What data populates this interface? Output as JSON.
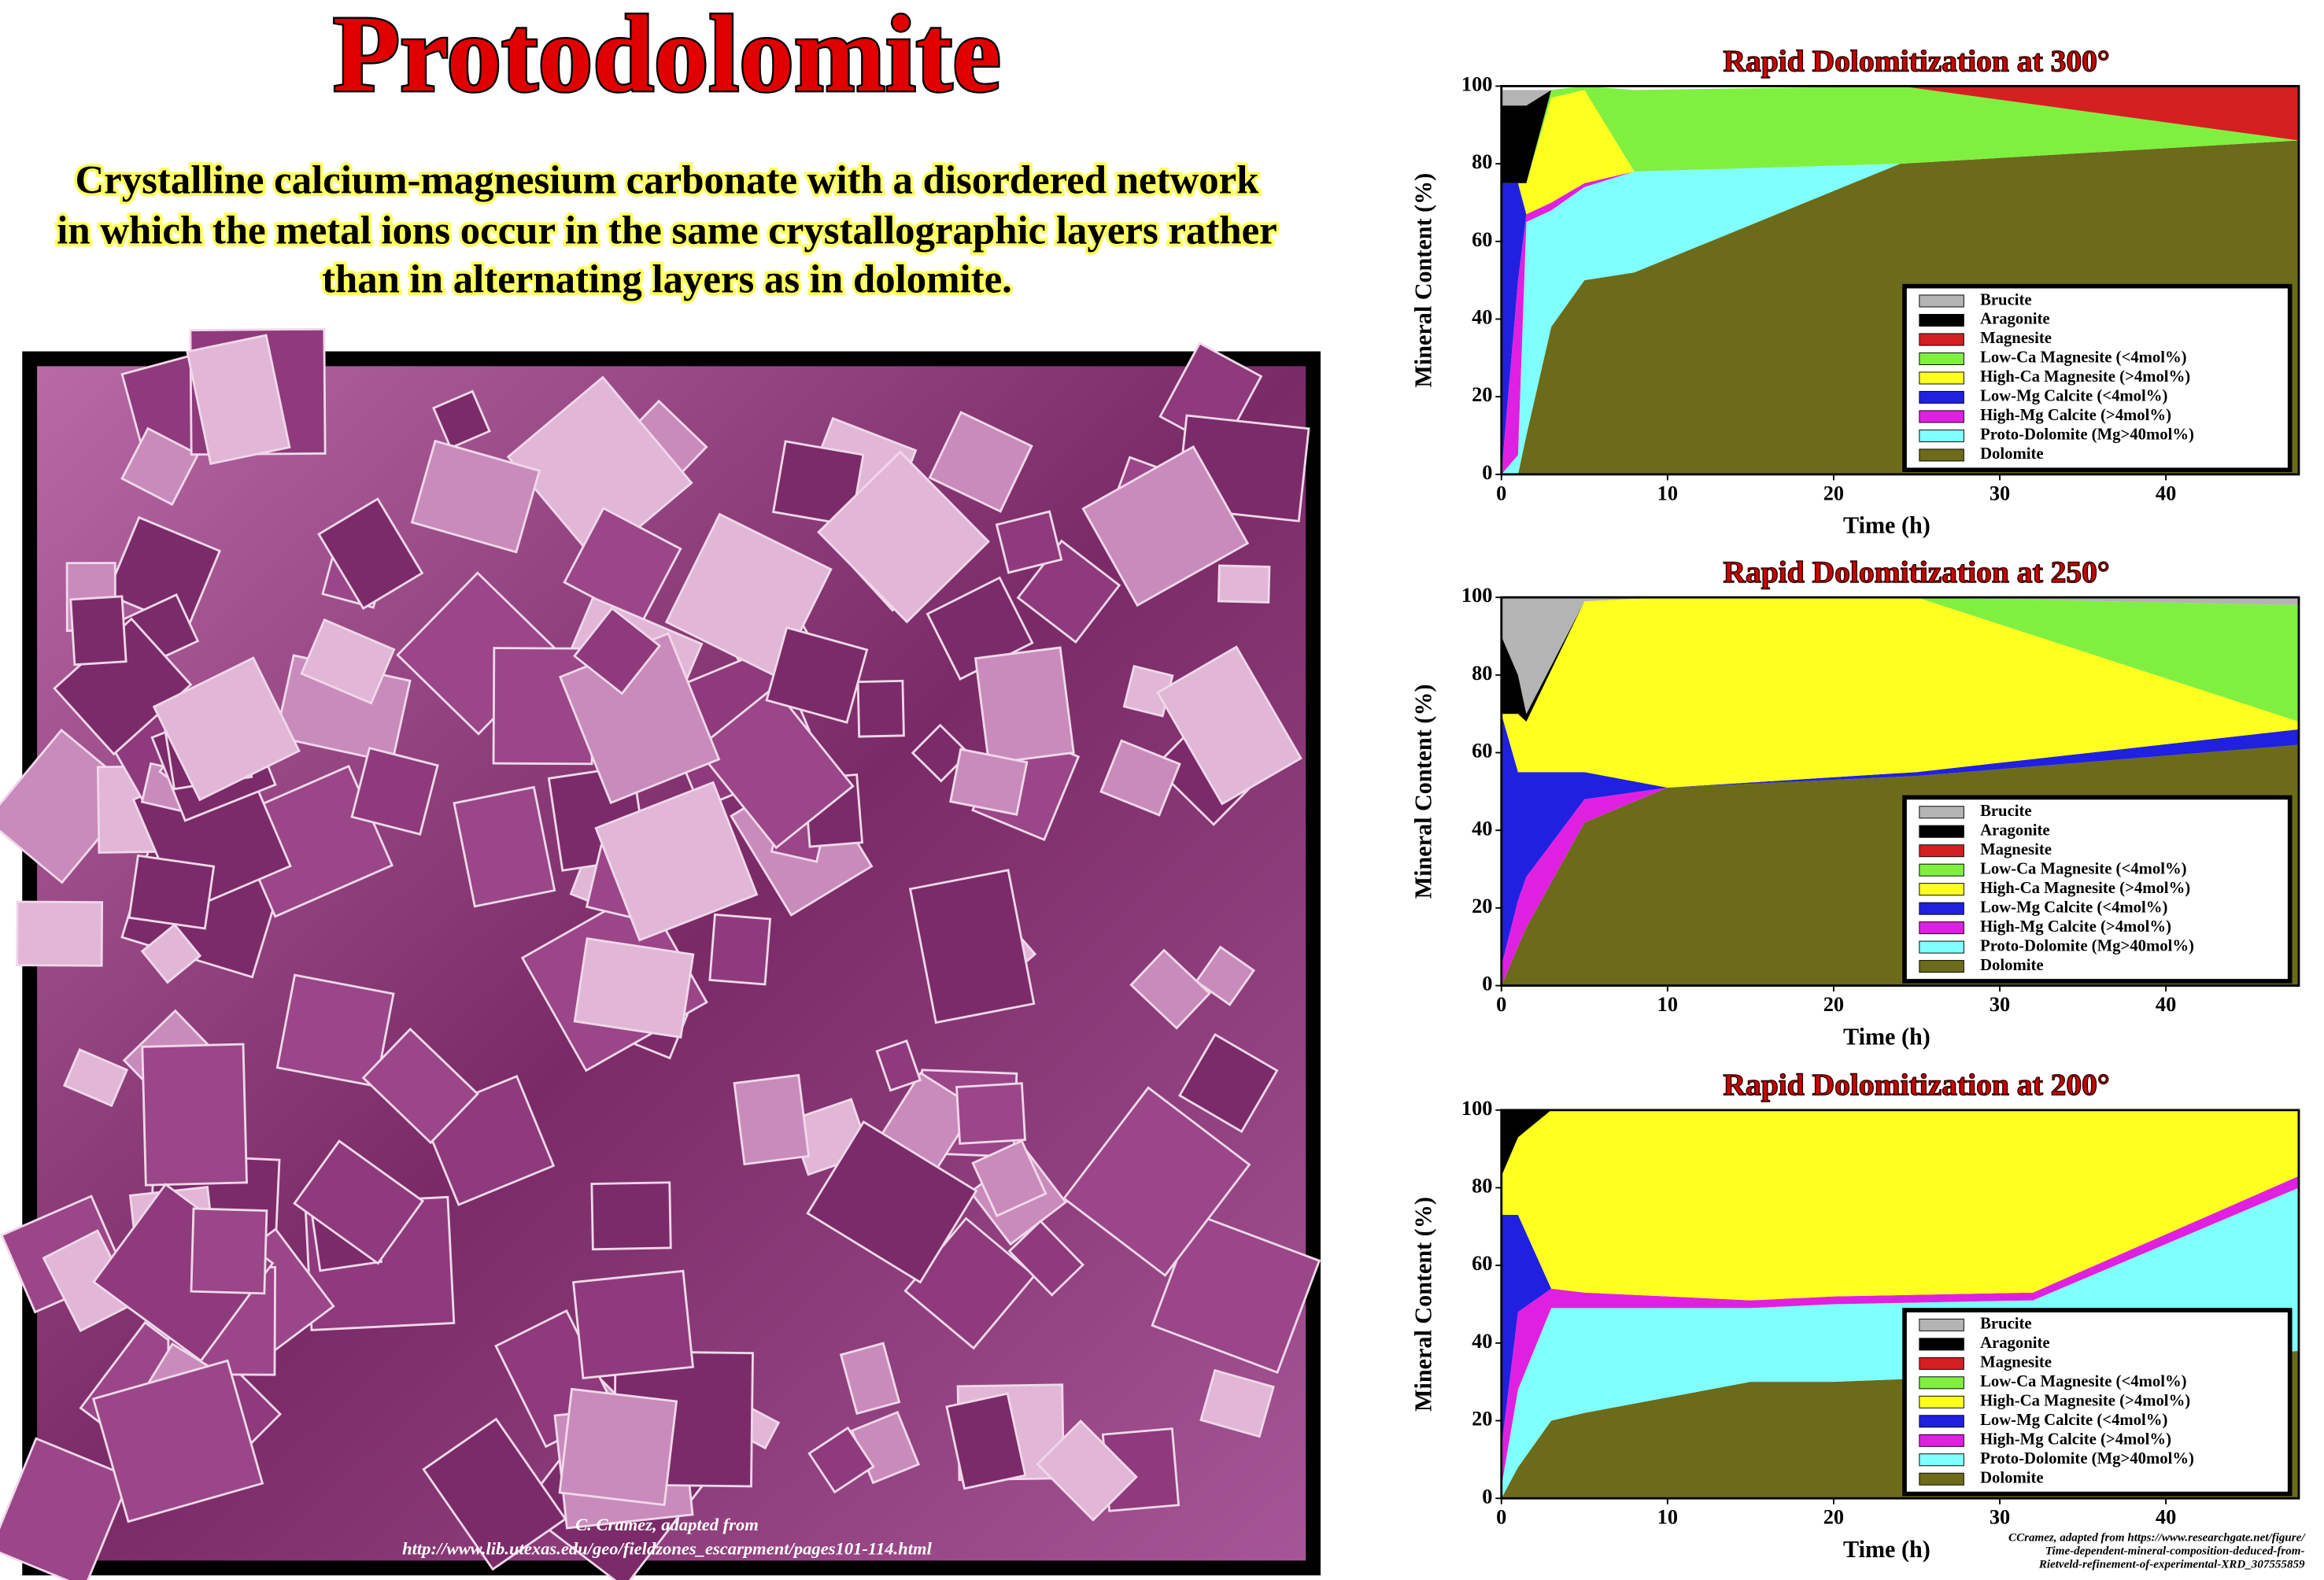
{
  "header": {
    "title": "Protodolomite",
    "subtitle": [
      "Crystalline calcium-magnesium carbonate with a disordered network",
      "in which the metal ions occur in the same crystallographic layers rather",
      "than in alternating layers as in dolomite."
    ]
  },
  "photo_credit": [
    "C. Cramez, adapted from",
    "http://www.lib.utexas.edu/geo/fieldzones_escarpment/pages101-114.html"
  ],
  "chart_credit": [
    "CCramez, adapted from https://www.researchgate.net/figure/",
    "Time-dependent-mineral-composition-deduced-from-",
    "Rietveld-refinement-of-experimental-XRD_307555859"
  ],
  "chart_data": [
    {
      "type": "area",
      "stacked": true,
      "title": "Rapid Dolomitization at 300°",
      "xlabel": "Time (h)",
      "ylabel": "Mineral Content (%)",
      "xlim": [
        0,
        48
      ],
      "ylim": [
        0,
        100
      ],
      "xticks": [
        0,
        10,
        20,
        30,
        40
      ],
      "yticks": [
        0,
        20,
        40,
        60,
        80,
        100
      ],
      "x": [
        0,
        1,
        1.5,
        3,
        5,
        8,
        24,
        48
      ],
      "series": [
        {
          "name": "Brucite",
          "color": "#b4b4b4",
          "values": [
            4,
            4,
            4,
            0,
            0,
            0,
            0,
            0
          ]
        },
        {
          "name": "Aragonite",
          "color": "#000000",
          "values": [
            20,
            20,
            20,
            0,
            0,
            0,
            0,
            0
          ]
        },
        {
          "name": "Magnesite",
          "color": "#d42020",
          "values": [
            0,
            0,
            0,
            0,
            0,
            0,
            0,
            14
          ]
        },
        {
          "name": "Low-Ca Magnesite  (<4mol%)",
          "color": "#80f040",
          "values": [
            0,
            0,
            0,
            2,
            1,
            21,
            20,
            0
          ]
        },
        {
          "name": "High-Ca Magnesite  (>4mol%)",
          "color": "#ffff20",
          "values": [
            0,
            0,
            8,
            27,
            24,
            0,
            0,
            0
          ]
        },
        {
          "name": "Low-Mg Calcite  (<4mol%)",
          "color": "#2020e0",
          "values": [
            75,
            25,
            0,
            0,
            0,
            0,
            0,
            0
          ]
        },
        {
          "name": "High-Mg Calcite  (>4mol%)",
          "color": "#e020e0",
          "values": [
            0,
            45,
            2,
            2,
            1,
            0,
            0,
            0
          ]
        },
        {
          "name": "Proto-Dolomite (Mg>40mol%)",
          "color": "#80ffff",
          "values": [
            0,
            5,
            55,
            30,
            24,
            26,
            0,
            0
          ]
        },
        {
          "name": "Dolomite",
          "color": "#6b6b1a",
          "values": [
            0,
            0,
            10,
            38,
            50,
            52,
            80,
            86
          ]
        }
      ]
    },
    {
      "type": "area",
      "stacked": true,
      "title": "Rapid Dolomitization at 250°",
      "xlabel": "Time (h)",
      "ylabel": "Mineral Content (%)",
      "xlim": [
        0,
        48
      ],
      "ylim": [
        0,
        100
      ],
      "xticks": [
        0,
        10,
        20,
        30,
        40
      ],
      "yticks": [
        0,
        20,
        40,
        60,
        80,
        100
      ],
      "x": [
        0,
        1,
        1.5,
        5,
        10,
        25,
        48
      ],
      "series": [
        {
          "name": "Brucite",
          "color": "#b4b4b4",
          "values": [
            10,
            20,
            30,
            1,
            0,
            0,
            2
          ]
        },
        {
          "name": "Aragonite",
          "color": "#000000",
          "values": [
            20,
            10,
            2,
            0,
            0,
            0,
            0
          ]
        },
        {
          "name": "Magnesite",
          "color": "#d42020",
          "values": [
            0,
            0,
            0,
            0,
            0,
            0,
            0
          ]
        },
        {
          "name": "Low-Ca Magnesite  (<4mol%)",
          "color": "#80f040",
          "values": [
            0,
            0,
            0,
            0,
            0,
            0,
            30
          ]
        },
        {
          "name": "High-Ca Magnesite  (>4mol%)",
          "color": "#ffff20",
          "values": [
            0,
            15,
            13,
            44,
            49,
            45,
            2
          ]
        },
        {
          "name": "Low-Mg Calcite  (<4mol%)",
          "color": "#2020e0",
          "values": [
            65,
            33,
            27,
            7,
            0,
            1,
            4
          ]
        },
        {
          "name": "High-Mg Calcite  (>4mol%)",
          "color": "#e020e0",
          "values": [
            5,
            12,
            13,
            6,
            0,
            0,
            0
          ]
        },
        {
          "name": "Proto-Dolomite (Mg>40mol%)",
          "color": "#80ffff",
          "values": [
            0,
            0,
            0,
            0,
            0,
            0,
            0
          ]
        },
        {
          "name": "Dolomite",
          "color": "#6b6b1a",
          "values": [
            0,
            10,
            15,
            42,
            51,
            54,
            62
          ]
        }
      ]
    },
    {
      "type": "area",
      "stacked": true,
      "title": "Rapid Dolomitization at 200°",
      "xlabel": "Time (h)",
      "ylabel": "Mineral Content (%)",
      "xlim": [
        0,
        48
      ],
      "ylim": [
        0,
        100
      ],
      "xticks": [
        0,
        10,
        20,
        30,
        40
      ],
      "yticks": [
        0,
        20,
        40,
        60,
        80,
        100
      ],
      "x": [
        0,
        1,
        3,
        5,
        15,
        20,
        32,
        48
      ],
      "series": [
        {
          "name": "Brucite",
          "color": "#b4b4b4",
          "values": [
            0,
            0,
            0,
            0,
            0,
            0,
            0,
            0
          ]
        },
        {
          "name": "Aragonite",
          "color": "#000000",
          "values": [
            17,
            7,
            0,
            0,
            0,
            0,
            0,
            0
          ]
        },
        {
          "name": "Magnesite",
          "color": "#d42020",
          "values": [
            0,
            0,
            0,
            0,
            0,
            0,
            0,
            0
          ]
        },
        {
          "name": "Low-Ca Magnesite  (<4mol%)",
          "color": "#80f040",
          "values": [
            0,
            0,
            0,
            0,
            0,
            0,
            0,
            0
          ]
        },
        {
          "name": "High-Ca Magnesite  (>4mol%)",
          "color": "#ffff20",
          "values": [
            10,
            20,
            46,
            47,
            49,
            48,
            47,
            17
          ]
        },
        {
          "name": "Low-Mg Calcite  (<4mol%)",
          "color": "#2020e0",
          "values": [
            60,
            25,
            0,
            0,
            0,
            0,
            0,
            0
          ]
        },
        {
          "name": "High-Mg Calcite  (>4mol%)",
          "color": "#e020e0",
          "values": [
            10,
            20,
            5,
            4,
            2,
            2,
            2,
            3
          ]
        },
        {
          "name": "Proto-Dolomite (Mg>40mol%)",
          "color": "#80ffff",
          "values": [
            3,
            20,
            29,
            27,
            19,
            20,
            19,
            42
          ]
        },
        {
          "name": "Dolomite",
          "color": "#6b6b1a",
          "values": [
            0,
            8,
            20,
            22,
            30,
            30,
            32,
            38
          ]
        }
      ]
    }
  ]
}
